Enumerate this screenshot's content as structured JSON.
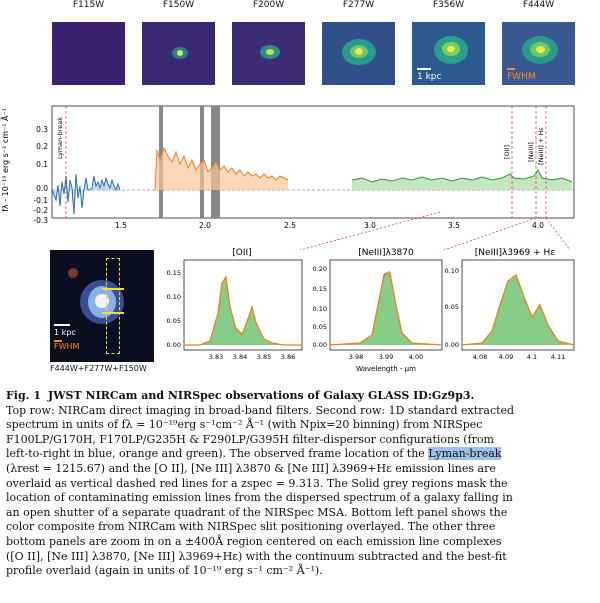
{
  "top_row": {
    "filters": [
      "F115W",
      "F150W",
      "F200W",
      "F277W",
      "F356W",
      "F444W"
    ],
    "scalebar_label": "1 kpc",
    "fwhm_label": "FWHM"
  },
  "spectrum": {
    "ylabel": "fλ - 10⁻¹⁹ erg s⁻¹ cm⁻² Å⁻¹",
    "yticks": [
      "0.3",
      "0.2",
      "0.1",
      "0.0",
      "-0.1",
      "-0.2",
      "-0.3"
    ],
    "xticks": [
      "1.5",
      "2.0",
      "2.5",
      "3.0",
      "3.5",
      "4.0"
    ],
    "line_labels": [
      "Lyman-break",
      "[OII]",
      "[NeIII]",
      "[NeIII] + Hε"
    ]
  },
  "composite": {
    "scalebar_label": "1 kpc",
    "fwhm_label": "FWHM",
    "bands_label": "F444W+F277W+F150W"
  },
  "zooms": [
    {
      "title": "[OII]",
      "xticks": [
        "3.83",
        "3.84",
        "3.85",
        "3.86"
      ],
      "yticks": [
        "0.15",
        "0.10",
        "0.05",
        "0.00"
      ]
    },
    {
      "title": "[NeIII]λ3870",
      "xticks": [
        "3.98",
        "3.99",
        "4.00"
      ],
      "yticks": [
        "0.20",
        "0.15",
        "0.10",
        "0.05",
        "0.00"
      ]
    },
    {
      "title": "[NeIII]λ3969 + Hε",
      "xticks": [
        "4.08",
        "4.09",
        "4.1",
        "4.11"
      ],
      "yticks": [
        "0.10",
        "0.05",
        "0.00"
      ]
    }
  ],
  "zoom_xlabel": "Wavelength - μm",
  "caption": {
    "fig": "Fig. 1",
    "title": "JWST NIRCam and NIRSpec observations of Galaxy GLASS ID:Gz9p3.",
    "l1": "Top row: NIRCam direct imaging in broad-band filters. Second row: 1D standard extracted",
    "l2": "spectrum in units of fλ = 10⁻¹⁹erg s⁻¹cm⁻² Å⁻¹ (with Npix=20 binning) from NIRSpec",
    "l3": "F100LP/G170H, F170LP/G235H & F290LP/G395H filter-dispersor configurations (from",
    "l4a": "left-to-right in blue, orange and green). The observed frame location of the",
    "l4hl": "Lyman-break",
    "l5": "(λrest = 1215.67) and the [O II], [Ne III] λ3870 & [Ne III] λ3969+Hε emission lines are",
    "l6": "overlaid as vertical dashed red lines for a zspec = 9.313. The Solid grey regions mask the",
    "l7": "location of contaminating emission lines from the dispersed spectrum of a galaxy falling in",
    "l8": "an open shutter of a separate quadrant of the NIRSpec MSA. Bottom left panel shows the",
    "l9": "color composite from NIRCam with NIRSpec slit positioning overlayed. The other three",
    "l10": "bottom panels are zoom in on a ±400Å region centered on each emission line complexes",
    "l11": "([O II], [Ne III] λ3870, [Ne III] λ3969+Hε) with the continuum subtracted and the best-fit",
    "l12": "profile overlaid (again in units of 10⁻¹⁹ erg s⁻¹ cm⁻² Å⁻¹)."
  }
}
